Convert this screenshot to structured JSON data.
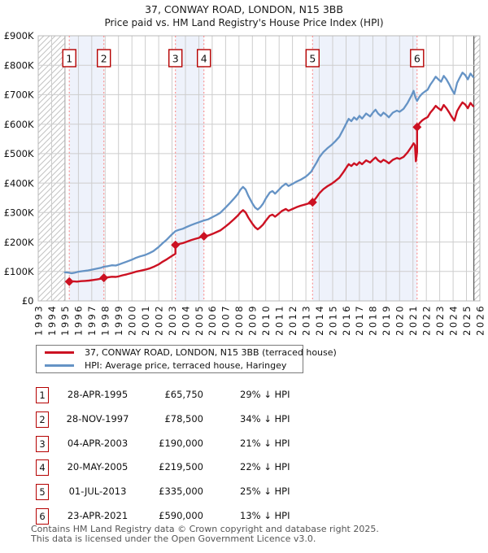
{
  "header": {
    "title": "37, CONWAY ROAD, LONDON, N15 3BB",
    "subtitle": "Price paid vs. HM Land Registry's House Price Index (HPI)"
  },
  "chart_data": {
    "type": "line",
    "x_range": [
      1993,
      2026
    ],
    "ylim_k": [
      0,
      900
    ],
    "grid": true,
    "legend_position": "bottom",
    "x_ticks": [
      "1993",
      "1994",
      "1995",
      "1996",
      "1997",
      "1998",
      "1999",
      "2000",
      "2001",
      "2002",
      "2003",
      "2004",
      "2005",
      "2006",
      "2007",
      "2008",
      "2009",
      "2010",
      "2011",
      "2012",
      "2013",
      "2014",
      "2015",
      "2016",
      "2017",
      "2018",
      "2019",
      "2020",
      "2021",
      "2022",
      "2023",
      "2024",
      "2025",
      "2026"
    ],
    "y_ticks": [
      {
        "k": 0,
        "label": "£0"
      },
      {
        "k": 100,
        "label": "£100K"
      },
      {
        "k": 200,
        "label": "£200K"
      },
      {
        "k": 300,
        "label": "£300K"
      },
      {
        "k": 400,
        "label": "£400K"
      },
      {
        "k": 500,
        "label": "£500K"
      },
      {
        "k": 600,
        "label": "£600K"
      },
      {
        "k": 700,
        "label": "£700K"
      },
      {
        "k": 800,
        "label": "£800K"
      },
      {
        "k": 900,
        "label": "£900K"
      }
    ],
    "colors": {
      "property": "#cc1122",
      "hpi": "#6593c5",
      "band": "#eef2fb",
      "grid": "#cdcdcd",
      "border": "#b9b9b9",
      "dash": "#f98b8b",
      "hatch": "#c2c2c2",
      "hatch_edge": "#5a5a5a",
      "marker_box_border": "#b50000"
    },
    "bands": [
      [
        1995.321,
        1997.907
      ],
      [
        2003.255,
        2005.381
      ],
      [
        2013.5,
        2021.307
      ]
    ],
    "hatch_regions": [
      [
        1993,
        1995.0
      ],
      [
        2025.55,
        2026
      ]
    ],
    "sales": [
      {
        "n": "1",
        "x": 1995.321,
        "price_k": 65.75
      },
      {
        "n": "2",
        "x": 1997.907,
        "price_k": 78.5
      },
      {
        "n": "3",
        "x": 2003.255,
        "price_k": 190
      },
      {
        "n": "4",
        "x": 2005.381,
        "price_k": 219.5
      },
      {
        "n": "5",
        "x": 2013.5,
        "price_k": 335
      },
      {
        "n": "6",
        "x": 2021.307,
        "price_k": 590
      }
    ],
    "series": [
      {
        "name": "37, CONWAY ROAD, LONDON, N15 3BB (terraced house)",
        "color": "#cc1122",
        "points": [
          [
            1995.321,
            65.75
          ],
          [
            1995.6,
            66.5
          ],
          [
            1995.9,
            65.5
          ],
          [
            1996.2,
            67
          ],
          [
            1996.5,
            68
          ],
          [
            1996.8,
            69
          ],
          [
            1997.1,
            71
          ],
          [
            1997.4,
            73
          ],
          [
            1997.66,
            75
          ],
          [
            1997.907,
            78.5
          ],
          [
            1998.2,
            80
          ],
          [
            1998.5,
            82
          ],
          [
            1998.8,
            81.5
          ],
          [
            1999.0,
            83
          ],
          [
            1999.3,
            87
          ],
          [
            1999.6,
            90
          ],
          [
            2000.0,
            95
          ],
          [
            2000.3,
            99
          ],
          [
            2000.6,
            102
          ],
          [
            2001.0,
            106
          ],
          [
            2001.3,
            110
          ],
          [
            2001.6,
            115
          ],
          [
            2002.0,
            124
          ],
          [
            2002.3,
            133
          ],
          [
            2002.6,
            141
          ],
          [
            2003.0,
            153
          ],
          [
            2003.255,
            160
          ],
          [
            2003.255,
            190
          ],
          [
            2003.5,
            193
          ],
          [
            2003.8,
            196
          ],
          [
            2004.1,
            201
          ],
          [
            2004.4,
            206
          ],
          [
            2004.7,
            210
          ],
          [
            2005.0,
            214
          ],
          [
            2005.2,
            218
          ],
          [
            2005.381,
            222
          ],
          [
            2005.381,
            219.5
          ],
          [
            2005.7,
            222
          ],
          [
            2006.0,
            227
          ],
          [
            2006.3,
            233
          ],
          [
            2006.6,
            239
          ],
          [
            2007.0,
            253
          ],
          [
            2007.3,
            264
          ],
          [
            2007.6,
            276
          ],
          [
            2007.9,
            289
          ],
          [
            2008.1,
            300
          ],
          [
            2008.3,
            308
          ],
          [
            2008.5,
            300
          ],
          [
            2008.7,
            283
          ],
          [
            2009.0,
            262
          ],
          [
            2009.2,
            250
          ],
          [
            2009.4,
            243
          ],
          [
            2009.6,
            250
          ],
          [
            2009.8,
            259
          ],
          [
            2010.0,
            272
          ],
          [
            2010.3,
            289
          ],
          [
            2010.5,
            293
          ],
          [
            2010.7,
            286
          ],
          [
            2011.0,
            297
          ],
          [
            2011.2,
            305
          ],
          [
            2011.5,
            312
          ],
          [
            2011.7,
            306
          ],
          [
            2012.0,
            312
          ],
          [
            2012.3,
            318
          ],
          [
            2012.6,
            323
          ],
          [
            2013.0,
            328
          ],
          [
            2013.2,
            331
          ],
          [
            2013.4,
            330
          ],
          [
            2013.5,
            335
          ],
          [
            2013.8,
            352
          ],
          [
            2014.0,
            365
          ],
          [
            2014.3,
            379
          ],
          [
            2014.6,
            389
          ],
          [
            2014.9,
            397
          ],
          [
            2015.2,
            407
          ],
          [
            2015.5,
            418
          ],
          [
            2015.8,
            437
          ],
          [
            2016.0,
            451
          ],
          [
            2016.2,
            464
          ],
          [
            2016.4,
            458
          ],
          [
            2016.6,
            467
          ],
          [
            2016.8,
            461
          ],
          [
            2017.0,
            471
          ],
          [
            2017.2,
            464
          ],
          [
            2017.5,
            477
          ],
          [
            2017.8,
            470
          ],
          [
            2018.0,
            479
          ],
          [
            2018.2,
            487
          ],
          [
            2018.4,
            477
          ],
          [
            2018.6,
            471
          ],
          [
            2018.8,
            479
          ],
          [
            2019.0,
            474
          ],
          [
            2019.2,
            467
          ],
          [
            2019.5,
            479
          ],
          [
            2019.8,
            485
          ],
          [
            2020.0,
            482
          ],
          [
            2020.3,
            489
          ],
          [
            2020.6,
            504
          ],
          [
            2020.9,
            524
          ],
          [
            2021.05,
            535
          ],
          [
            2021.15,
            528
          ],
          [
            2021.22,
            474
          ],
          [
            2021.307,
            505
          ],
          [
            2021.307,
            590
          ],
          [
            2021.5,
            604
          ],
          [
            2021.7,
            613
          ],
          [
            2021.9,
            619
          ],
          [
            2022.1,
            624
          ],
          [
            2022.3,
            639
          ],
          [
            2022.5,
            650
          ],
          [
            2022.7,
            662
          ],
          [
            2022.9,
            654
          ],
          [
            2023.1,
            647
          ],
          [
            2023.3,
            665
          ],
          [
            2023.5,
            654
          ],
          [
            2023.7,
            640
          ],
          [
            2023.9,
            625
          ],
          [
            2024.1,
            612
          ],
          [
            2024.3,
            644
          ],
          [
            2024.5,
            660
          ],
          [
            2024.7,
            674
          ],
          [
            2024.9,
            667
          ],
          [
            2025.1,
            654
          ],
          [
            2025.3,
            672
          ],
          [
            2025.5,
            661
          ]
        ]
      },
      {
        "name": "HPI: Average price, terraced house, Haringey",
        "color": "#6593c5",
        "points": [
          [
            1995.0,
            97
          ],
          [
            1995.25,
            96
          ],
          [
            1995.5,
            94
          ],
          [
            1995.75,
            96
          ],
          [
            1996.0,
            99
          ],
          [
            1996.33,
            101
          ],
          [
            1996.66,
            103
          ],
          [
            1997.0,
            106
          ],
          [
            1997.33,
            109
          ],
          [
            1997.66,
            112
          ],
          [
            1997.907,
            116
          ],
          [
            1998.2,
            118
          ],
          [
            1998.5,
            121
          ],
          [
            1998.8,
            120
          ],
          [
            1999.0,
            123
          ],
          [
            1999.3,
            128
          ],
          [
            1999.6,
            133
          ],
          [
            2000.0,
            140
          ],
          [
            2000.3,
            146
          ],
          [
            2000.6,
            151
          ],
          [
            2001.0,
            156
          ],
          [
            2001.3,
            162
          ],
          [
            2001.6,
            169
          ],
          [
            2002.0,
            183
          ],
          [
            2002.3,
            196
          ],
          [
            2002.6,
            208
          ],
          [
            2003.0,
            226
          ],
          [
            2003.255,
            237
          ],
          [
            2003.5,
            241
          ],
          [
            2003.8,
            245
          ],
          [
            2004.1,
            251
          ],
          [
            2004.4,
            257
          ],
          [
            2004.7,
            262
          ],
          [
            2005.0,
            267
          ],
          [
            2005.381,
            273
          ],
          [
            2005.7,
            277
          ],
          [
            2006.0,
            284
          ],
          [
            2006.3,
            291
          ],
          [
            2006.6,
            299
          ],
          [
            2007.0,
            317
          ],
          [
            2007.3,
            331
          ],
          [
            2007.6,
            346
          ],
          [
            2007.9,
            362
          ],
          [
            2008.1,
            377
          ],
          [
            2008.3,
            387
          ],
          [
            2008.5,
            378
          ],
          [
            2008.7,
            357
          ],
          [
            2009.0,
            331
          ],
          [
            2009.2,
            317
          ],
          [
            2009.4,
            310
          ],
          [
            2009.6,
            318
          ],
          [
            2009.8,
            330
          ],
          [
            2010.0,
            347
          ],
          [
            2010.3,
            368
          ],
          [
            2010.5,
            373
          ],
          [
            2010.7,
            364
          ],
          [
            2011.0,
            378
          ],
          [
            2011.2,
            388
          ],
          [
            2011.5,
            398
          ],
          [
            2011.7,
            390
          ],
          [
            2012.0,
            397
          ],
          [
            2012.3,
            405
          ],
          [
            2012.6,
            411
          ],
          [
            2013.0,
            422
          ],
          [
            2013.2,
            430
          ],
          [
            2013.4,
            439
          ],
          [
            2013.5,
            447
          ],
          [
            2013.8,
            470
          ],
          [
            2014.0,
            487
          ],
          [
            2014.3,
            505
          ],
          [
            2014.6,
            518
          ],
          [
            2014.9,
            529
          ],
          [
            2015.2,
            542
          ],
          [
            2015.5,
            557
          ],
          [
            2015.8,
            583
          ],
          [
            2016.0,
            601
          ],
          [
            2016.2,
            618
          ],
          [
            2016.4,
            610
          ],
          [
            2016.6,
            623
          ],
          [
            2016.8,
            615
          ],
          [
            2017.0,
            628
          ],
          [
            2017.2,
            619
          ],
          [
            2017.5,
            636
          ],
          [
            2017.8,
            626
          ],
          [
            2018.0,
            639
          ],
          [
            2018.2,
            649
          ],
          [
            2018.4,
            636
          ],
          [
            2018.6,
            628
          ],
          [
            2018.8,
            639
          ],
          [
            2019.0,
            632
          ],
          [
            2019.2,
            623
          ],
          [
            2019.5,
            639
          ],
          [
            2019.8,
            646
          ],
          [
            2020.0,
            642
          ],
          [
            2020.3,
            652
          ],
          [
            2020.6,
            672
          ],
          [
            2020.9,
            698
          ],
          [
            2021.05,
            713
          ],
          [
            2021.2,
            689
          ],
          [
            2021.307,
            679
          ],
          [
            2021.5,
            694
          ],
          [
            2021.7,
            704
          ],
          [
            2021.9,
            711
          ],
          [
            2022.1,
            717
          ],
          [
            2022.3,
            734
          ],
          [
            2022.5,
            747
          ],
          [
            2022.7,
            761
          ],
          [
            2022.9,
            752
          ],
          [
            2023.1,
            744
          ],
          [
            2023.3,
            764
          ],
          [
            2023.5,
            752
          ],
          [
            2023.7,
            736
          ],
          [
            2023.9,
            718
          ],
          [
            2024.1,
            703
          ],
          [
            2024.3,
            740
          ],
          [
            2024.5,
            758
          ],
          [
            2024.7,
            775
          ],
          [
            2024.9,
            767
          ],
          [
            2025.1,
            752
          ],
          [
            2025.3,
            772
          ],
          [
            2025.5,
            760
          ]
        ]
      }
    ]
  },
  "legend": {
    "items": [
      {
        "label": "37, CONWAY ROAD, LONDON, N15 3BB (terraced house)",
        "color": "#cc1122"
      },
      {
        "label": "HPI: Average price, terraced house, Haringey",
        "color": "#6593c5"
      }
    ]
  },
  "table": {
    "rows": [
      {
        "num": "1",
        "date": "28-APR-1995",
        "price": "£65,750",
        "vs_hpi": "29% ↓ HPI"
      },
      {
        "num": "2",
        "date": "28-NOV-1997",
        "price": "£78,500",
        "vs_hpi": "34% ↓ HPI"
      },
      {
        "num": "3",
        "date": "04-APR-2003",
        "price": "£190,000",
        "vs_hpi": "21% ↓ HPI"
      },
      {
        "num": "4",
        "date": "20-MAY-2005",
        "price": "£219,500",
        "vs_hpi": "22% ↓ HPI"
      },
      {
        "num": "5",
        "date": "01-JUL-2013",
        "price": "£335,000",
        "vs_hpi": "25% ↓ HPI"
      },
      {
        "num": "6",
        "date": "23-APR-2021",
        "price": "£590,000",
        "vs_hpi": "13% ↓ HPI"
      }
    ]
  },
  "footer": {
    "line1": "Contains HM Land Registry data © Crown copyright and database right 2025.",
    "line2": "This data is licensed under the Open Government Licence v3.0."
  }
}
